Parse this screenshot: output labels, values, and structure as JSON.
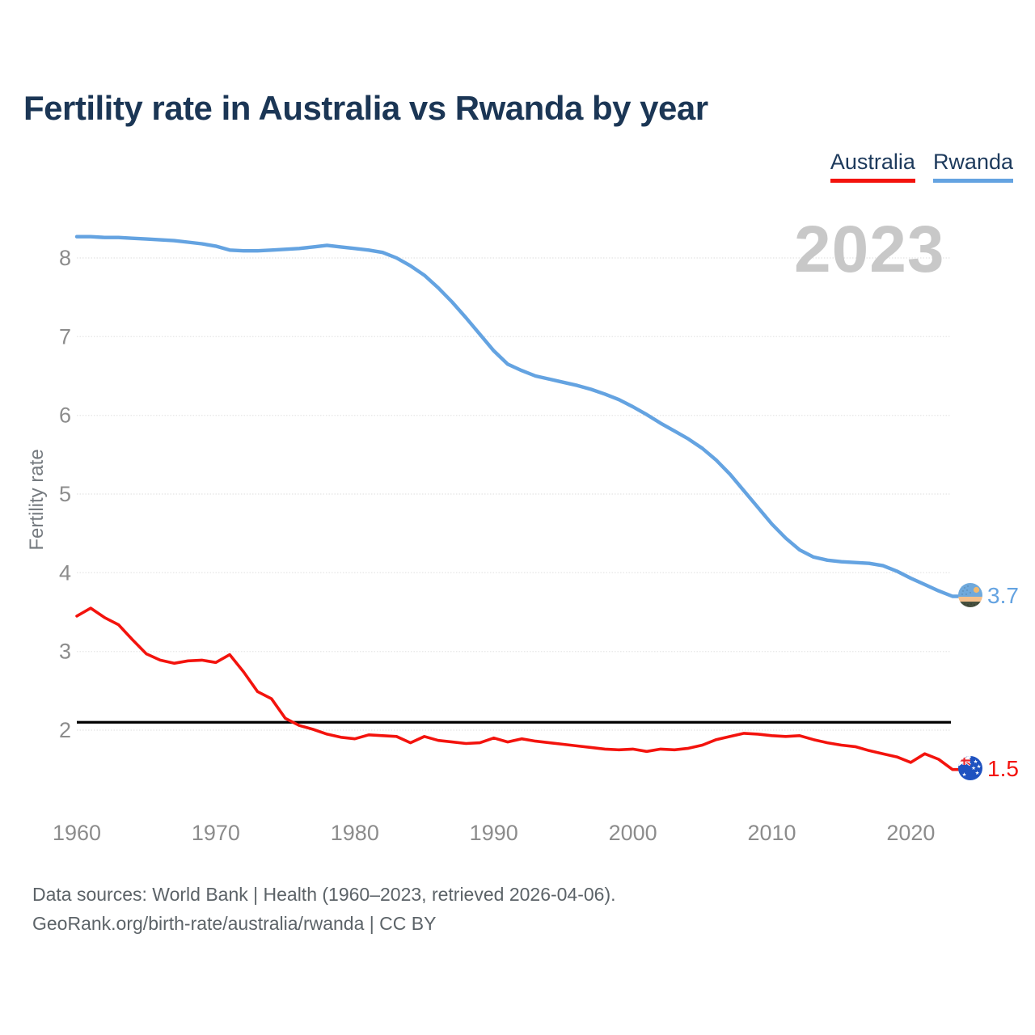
{
  "title": "Fertility rate in Australia vs Rwanda by year",
  "watermark_year": "2023",
  "legend": {
    "items": [
      {
        "label": "Australia",
        "color": "#f3130d"
      },
      {
        "label": "Rwanda",
        "color": "#64a3e1"
      }
    ]
  },
  "ylabel": "Fertility rate",
  "end_markers": [
    {
      "series": "Rwanda",
      "value_label": "3.7",
      "icon": "rwanda-flag-icon",
      "color": "#64a3e1"
    },
    {
      "series": "Australia",
      "value_label": "1.5",
      "icon": "australia-flag-icon",
      "color": "#f3130d"
    }
  ],
  "footer": {
    "line1": "Data sources: World Bank | Health (1960–2023, retrieved 2026-04-06).",
    "line2": "GeoRank.org/birth-rate/australia/rwanda | CC BY"
  },
  "chart_data": {
    "type": "line",
    "title": "Fertility rate in Australia vs Rwanda by year",
    "xlabel": "",
    "ylabel": "Fertility rate",
    "x_start": 1960,
    "x_end": 2023,
    "xticks": [
      1960,
      1970,
      1980,
      1990,
      2000,
      2010,
      2020
    ],
    "yticks": [
      2,
      3,
      4,
      5,
      6,
      7,
      8
    ],
    "xlim": [
      1960,
      2023
    ],
    "ylim": [
      1.3,
      8.5
    ],
    "grid": true,
    "legend_position": "top-right",
    "watermark": "2023",
    "reference_line": {
      "value": 2.1,
      "color": "#000000"
    },
    "series": [
      {
        "name": "Australia",
        "color": "#f3130d",
        "end_value": 1.5,
        "values": [
          3.45,
          3.55,
          3.43,
          3.34,
          3.15,
          2.97,
          2.89,
          2.85,
          2.88,
          2.89,
          2.86,
          2.96,
          2.74,
          2.49,
          2.4,
          2.15,
          2.06,
          2.01,
          1.95,
          1.91,
          1.89,
          1.94,
          1.93,
          1.92,
          1.84,
          1.92,
          1.87,
          1.85,
          1.83,
          1.84,
          1.9,
          1.85,
          1.89,
          1.86,
          1.84,
          1.82,
          1.8,
          1.78,
          1.76,
          1.75,
          1.76,
          1.73,
          1.76,
          1.75,
          1.77,
          1.81,
          1.88,
          1.92,
          1.96,
          1.95,
          1.93,
          1.92,
          1.93,
          1.88,
          1.84,
          1.81,
          1.79,
          1.74,
          1.7,
          1.66,
          1.59,
          1.7,
          1.63,
          1.5
        ]
      },
      {
        "name": "Rwanda",
        "color": "#64a3e1",
        "end_value": 3.7,
        "values": [
          8.27,
          8.27,
          8.26,
          8.26,
          8.25,
          8.24,
          8.23,
          8.22,
          8.2,
          8.18,
          8.15,
          8.1,
          8.09,
          8.09,
          8.1,
          8.11,
          8.12,
          8.14,
          8.16,
          8.14,
          8.12,
          8.1,
          8.07,
          8.0,
          7.9,
          7.78,
          7.62,
          7.44,
          7.24,
          7.03,
          6.82,
          6.65,
          6.57,
          6.5,
          6.46,
          6.42,
          6.38,
          6.33,
          6.27,
          6.2,
          6.11,
          6.01,
          5.9,
          5.8,
          5.7,
          5.58,
          5.43,
          5.25,
          5.04,
          4.83,
          4.62,
          4.44,
          4.29,
          4.2,
          4.16,
          4.14,
          4.13,
          4.12,
          4.09,
          4.02,
          3.93,
          3.85,
          3.77,
          3.7
        ]
      }
    ]
  }
}
